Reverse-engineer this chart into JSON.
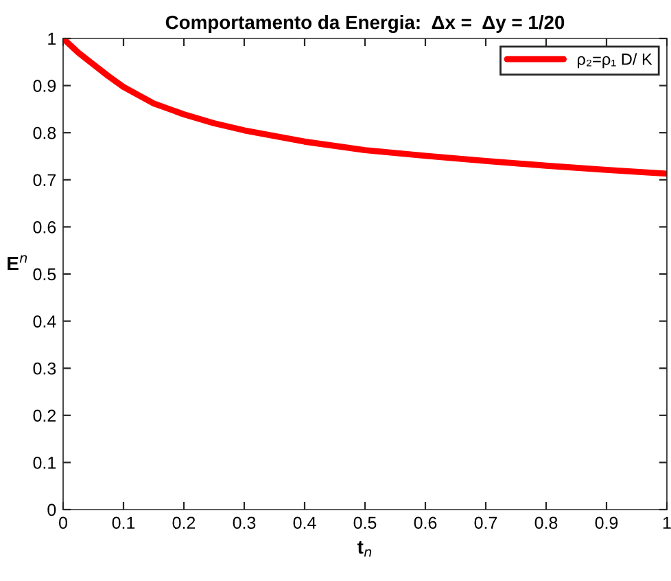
{
  "chart_data": {
    "type": "line",
    "title": "Comportamento da Energia:  Δx =  Δy = 1/20",
    "xlabel": "t$_{n}$",
    "ylabel": "E$^{n}$",
    "x": [
      0,
      0.025,
      0.05,
      0.075,
      0.1,
      0.15,
      0.2,
      0.25,
      0.3,
      0.4,
      0.5,
      0.6,
      0.7,
      0.8,
      0.9,
      1.0
    ],
    "series": [
      {
        "name": "ρ₂=ρ₁ D/ K",
        "color": "#ff0000",
        "values": [
          1.0,
          0.97,
          0.945,
          0.92,
          0.897,
          0.862,
          0.839,
          0.82,
          0.805,
          0.781,
          0.763,
          0.751,
          0.74,
          0.73,
          0.721,
          0.713
        ]
      }
    ],
    "xlim": [
      0,
      1
    ],
    "ylim": [
      0,
      1
    ],
    "xticks": [
      0,
      0.1,
      0.2,
      0.3,
      0.4,
      0.5,
      0.6,
      0.7,
      0.8,
      0.9,
      1
    ],
    "yticks": [
      0,
      0.1,
      0.2,
      0.3,
      0.4,
      0.5,
      0.6,
      0.7,
      0.8,
      0.9,
      1
    ],
    "grid": false,
    "legend": "top right",
    "marker": "none",
    "line_style": "solid"
  }
}
